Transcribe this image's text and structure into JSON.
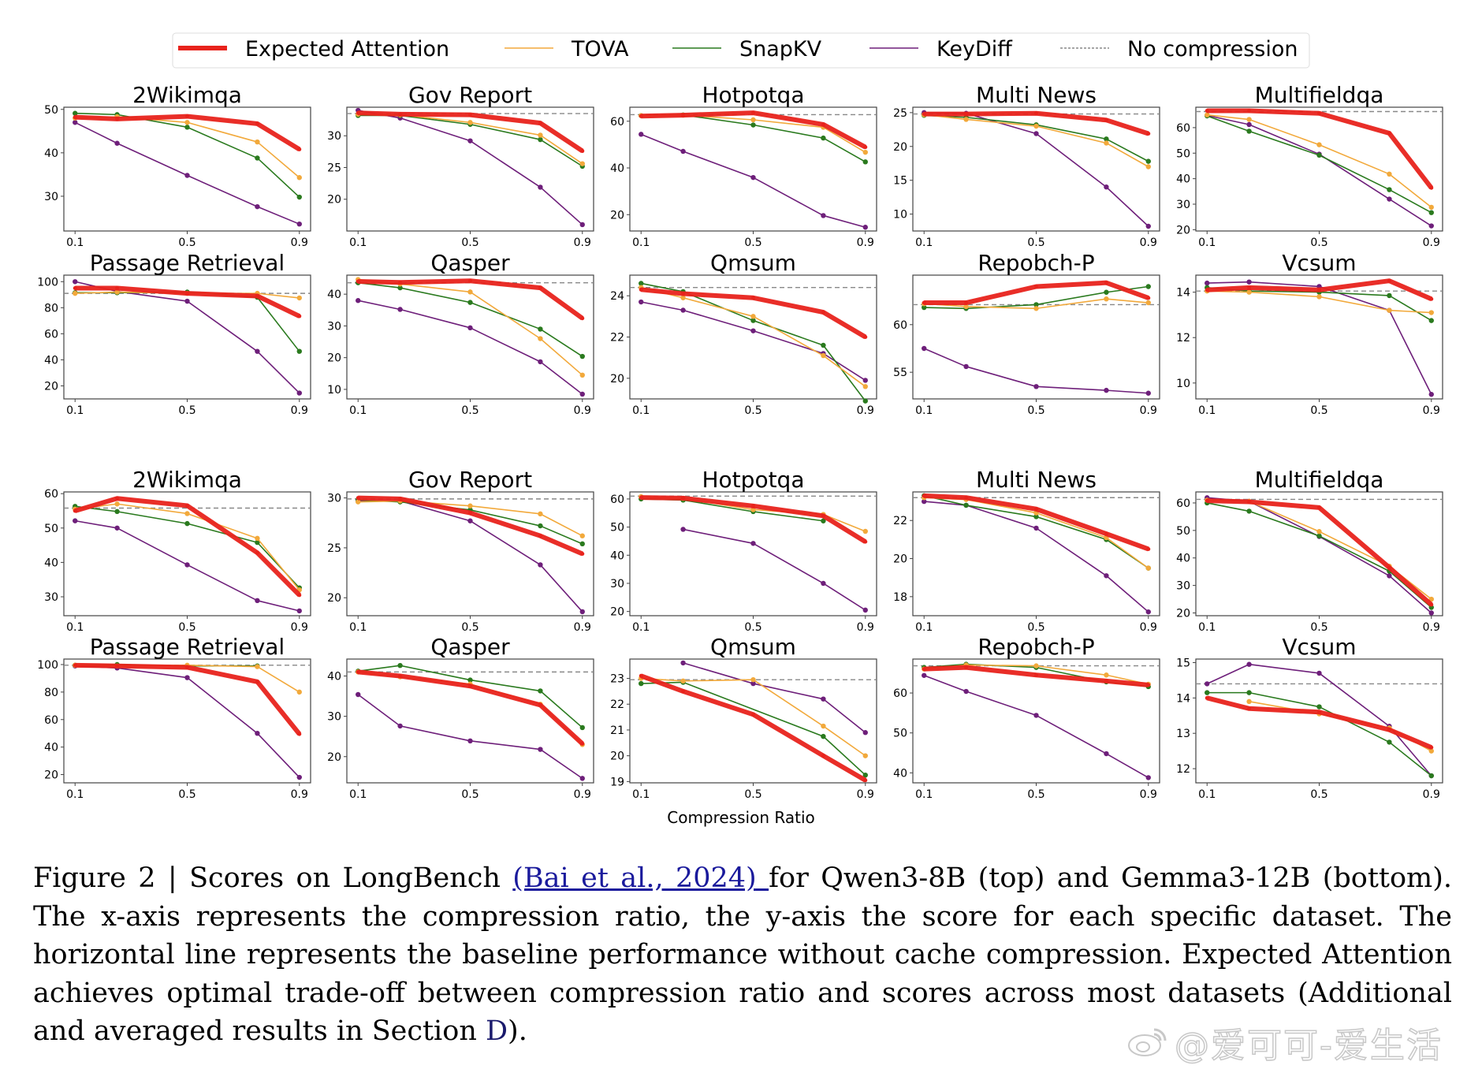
{
  "legend": [
    {
      "name": "Expected Attention",
      "color": "#e8231c",
      "style": "thick"
    },
    {
      "name": "TOVA",
      "color": "#f2a93b",
      "style": "thin"
    },
    {
      "name": "SnapKV",
      "color": "#2a7a1e",
      "style": "thin"
    },
    {
      "name": "KeyDiff",
      "color": "#6e1f7a",
      "style": "thin"
    },
    {
      "name": "No compression",
      "color": "#888888",
      "style": "dashed"
    }
  ],
  "caption": {
    "prefix": "Figure 2 | Scores on LongBench ",
    "citation": "(Bai et al., 2024) ",
    "middle": "for Qwen3-8B (top) and Gemma3-12B (bottom). The x-axis represents the compression ratio, the y-axis the score for each specific dataset. The horizontal line represents the baseline performance without cache compression. Expected Attention achieves optimal trade-off between compression ratio and scores across most datasets (Additional and averaged results in Section ",
    "section_ref": "D",
    "suffix": ")."
  },
  "watermark": "@爱可可-爱生活",
  "chart_data": [
    {
      "type": "line",
      "group": "Qwen3-8B (top)",
      "xlabel": "Compression Ratio",
      "x": [
        0.1,
        0.25,
        0.5,
        0.75,
        0.9
      ],
      "xticks": [
        "0.1",
        "0.5",
        "0.9"
      ],
      "panels": [
        {
          "title": "2Wikimqa",
          "ylim": [
            22,
            50.5
          ],
          "yticks": [
            30,
            40,
            50
          ],
          "baseline": null,
          "series": {
            "Expected Attention": [
              48.2,
              47.8,
              48.4,
              46.7,
              40.8
            ],
            "TOVA": [
              48.0,
              48.3,
              47.0,
              42.5,
              34.3
            ],
            "SnapKV": [
              49.1,
              48.8,
              45.9,
              38.8,
              29.8
            ],
            "KeyDiff": [
              47.0,
              42.2,
              34.8,
              27.6,
              23.6
            ]
          }
        },
        {
          "title": "Gov Report",
          "ylim": [
            15,
            34.5
          ],
          "yticks": [
            20,
            25,
            30
          ],
          "baseline": 33.5,
          "series": {
            "Expected Attention": [
              33.6,
              33.4,
              33.3,
              32.0,
              27.6
            ],
            "TOVA": [
              33.4,
              33.3,
              32.1,
              30.1,
              25.6
            ],
            "SnapKV": [
              33.2,
              33.2,
              31.8,
              29.4,
              25.2
            ],
            "KeyDiff": [
              34.0,
              32.8,
              29.2,
              21.9,
              16.0
            ]
          }
        },
        {
          "title": "Hotpotqa",
          "ylim": [
            13,
            66
          ],
          "yticks": [
            20,
            40,
            60
          ],
          "baseline": 62.8,
          "series": {
            "Expected Attention": [
              62.2,
              62.6,
              63.6,
              58.6,
              48.9
            ],
            "TOVA": [
              62.4,
              62.6,
              60.6,
              57.4,
              46.7
            ],
            "SnapKV": [
              62.4,
              62.7,
              58.4,
              52.8,
              42.6
            ],
            "KeyDiff": [
              54.4,
              47.1,
              35.9,
              19.6,
              14.6
            ]
          }
        },
        {
          "title": "Multi News",
          "ylim": [
            7.5,
            25.8
          ],
          "yticks": [
            10,
            15,
            20,
            25
          ],
          "baseline": 24.8,
          "series": {
            "Expected Attention": [
              24.8,
              24.8,
              24.9,
              23.9,
              21.9
            ],
            "TOVA": [
              24.7,
              24.0,
              23.0,
              20.5,
              17.0
            ],
            "SnapKV": [
              24.6,
              24.3,
              23.2,
              21.1,
              17.8
            ],
            "KeyDiff": [
              25.0,
              24.9,
              21.9,
              14.0,
              8.2
            ]
          }
        },
        {
          "title": "Multifieldqa",
          "ylim": [
            19.5,
            68
          ],
          "yticks": [
            20,
            30,
            40,
            50,
            60
          ],
          "baseline": 66.3,
          "series": {
            "Expected Attention": [
              66.6,
              66.6,
              65.6,
              57.8,
              36.4
            ],
            "TOVA": [
              65.0,
              63.2,
              53.3,
              41.8,
              28.8
            ],
            "SnapKV": [
              64.6,
              58.6,
              49.2,
              35.7,
              26.7
            ],
            "KeyDiff": [
              64.8,
              61.2,
              49.6,
              32.0,
              21.5
            ]
          }
        },
        {
          "title": "Passage Retrieval",
          "ylim": [
            10,
            105
          ],
          "yticks": [
            20,
            40,
            60,
            80,
            100
          ],
          "baseline": 91.0,
          "series": {
            "Expected Attention": [
              95.0,
              95.0,
              91.0,
              89.0,
              73.5
            ],
            "TOVA": [
              91.0,
              92.0,
              91.0,
              91.0,
              87.5
            ],
            "SnapKV": [
              91.5,
              91.5,
              92.0,
              88.0,
              46.5
            ],
            "KeyDiff": [
              100.0,
              92.5,
              85.0,
              46.5,
              14.5
            ]
          }
        },
        {
          "title": "Qasper",
          "ylim": [
            7,
            46
          ],
          "yticks": [
            10,
            20,
            30,
            40
          ],
          "baseline": 43.6,
          "series": {
            "Expected Attention": [
              44.0,
              43.7,
              44.2,
              42.0,
              32.4
            ],
            "TOVA": [
              44.6,
              43.2,
              40.7,
              26.0,
              14.5
            ],
            "SnapKV": [
              43.6,
              42.0,
              37.4,
              29.0,
              20.4
            ],
            "KeyDiff": [
              38.0,
              35.2,
              29.4,
              18.7,
              8.5
            ]
          }
        },
        {
          "title": "Qmsum",
          "ylim": [
            19.0,
            25.0
          ],
          "yticks": [
            20,
            22,
            24
          ],
          "baseline": 24.4,
          "series": {
            "Expected Attention": [
              24.3,
              24.1,
              23.9,
              23.2,
              22.0
            ],
            "TOVA": [
              24.4,
              23.9,
              23.0,
              21.1,
              19.6
            ],
            "SnapKV": [
              24.6,
              24.2,
              22.8,
              21.6,
              18.9
            ],
            "KeyDiff": [
              23.7,
              23.3,
              22.3,
              21.2,
              19.9
            ]
          }
        },
        {
          "title": "Repobch-P",
          "ylim": [
            52.2,
            65.2
          ],
          "yticks": [
            55,
            60
          ],
          "baseline": 62.1,
          "series": {
            "Expected Attention": [
              62.3,
              62.3,
              64.0,
              64.4,
              62.8
            ],
            "TOVA": [
              62.2,
              61.9,
              61.7,
              62.7,
              62.3
            ],
            "SnapKV": [
              61.8,
              61.7,
              62.1,
              63.4,
              64.0
            ],
            "KeyDiff": [
              57.5,
              55.6,
              53.5,
              53.1,
              52.8
            ]
          }
        },
        {
          "title": "Vcsum",
          "ylim": [
            9.3,
            14.75
          ],
          "yticks": [
            10,
            12,
            14
          ],
          "baseline": 14.05,
          "series": {
            "Expected Attention": [
              14.1,
              14.2,
              14.1,
              14.5,
              13.7
            ],
            "TOVA": [
              14.05,
              14.0,
              13.8,
              13.2,
              13.1
            ],
            "SnapKV": [
              14.2,
              14.05,
              14.0,
              13.85,
              12.75
            ],
            "KeyDiff": [
              14.4,
              14.45,
              14.25,
              13.2,
              9.5
            ]
          }
        }
      ]
    },
    {
      "type": "line",
      "group": "Gemma3-12B (bottom)",
      "xlabel": "Compression Ratio",
      "x": [
        0.1,
        0.25,
        0.5,
        0.75,
        0.9
      ],
      "xticks": [
        "0.1",
        "0.5",
        "0.9"
      ],
      "panels": [
        {
          "title": "2Wikimqa",
          "ylim": [
            24.5,
            60.5
          ],
          "yticks": [
            30,
            40,
            50,
            60
          ],
          "baseline": 55.8,
          "series": {
            "Expected Attention": [
              55.0,
              58.6,
              56.5,
              42.8,
              30.5
            ],
            "TOVA": [
              55.5,
              57.0,
              54.2,
              47.0,
              32.0
            ],
            "SnapKV": [
              56.3,
              54.8,
              51.3,
              45.8,
              32.6
            ],
            "KeyDiff": [
              52.1,
              50.0,
              39.3,
              28.9,
              25.9
            ]
          }
        },
        {
          "title": "Gov Report",
          "ylim": [
            18.2,
            30.6
          ],
          "yticks": [
            20,
            25,
            30
          ],
          "baseline": 29.9,
          "series": {
            "Expected Attention": [
              30.0,
              29.9,
              28.5,
              26.2,
              24.4
            ],
            "TOVA": [
              29.6,
              29.7,
              29.2,
              28.4,
              26.2
            ],
            "SnapKV": [
              29.8,
              29.6,
              28.8,
              27.2,
              25.4
            ],
            "KeyDiff": [
              29.7,
              29.7,
              27.7,
              23.3,
              18.6
            ]
          }
        },
        {
          "title": "Hotpotqa",
          "ylim": [
            18.5,
            62.5
          ],
          "yticks": [
            20,
            30,
            40,
            50,
            60
          ],
          "baseline": 61.0,
          "series": {
            "Expected Attention": [
              60.5,
              60.3,
              57.5,
              54.0,
              44.8
            ],
            "TOVA": [
              60.8,
              60.2,
              56.2,
              54.5,
              48.5
            ],
            "SnapKV": [
              60.0,
              59.6,
              55.5,
              52.2,
              null
            ],
            "KeyDiff": [
              null,
              49.2,
              44.2,
              30.0,
              20.5
            ]
          }
        },
        {
          "title": "Multi News",
          "ylim": [
            17.0,
            23.5
          ],
          "yticks": [
            18,
            20,
            22
          ],
          "baseline": 23.2,
          "series": {
            "Expected Attention": [
              23.3,
              23.2,
              22.6,
              21.3,
              20.5
            ],
            "TOVA": [
              23.2,
              23.1,
              22.4,
              21.1,
              19.5
            ],
            "SnapKV": [
              23.3,
              22.8,
              22.2,
              21.0,
              19.5
            ],
            "KeyDiff": [
              23.0,
              22.8,
              21.6,
              19.1,
              17.2
            ]
          }
        },
        {
          "title": "Multifieldqa",
          "ylim": [
            19,
            64
          ],
          "yticks": [
            20,
            30,
            40,
            50,
            60
          ],
          "baseline": 61.3,
          "series": {
            "Expected Attention": [
              60.8,
              60.4,
              58.3,
              36.5,
              23.0
            ],
            "TOVA": [
              61.0,
              60.6,
              49.6,
              37.0,
              25.0
            ],
            "SnapKV": [
              60.0,
              57.0,
              48.0,
              35.2,
              22.0
            ],
            "KeyDiff": [
              61.9,
              60.6,
              47.8,
              33.5,
              20.0
            ]
          }
        },
        {
          "title": "Passage Retrieval",
          "ylim": [
            14,
            104
          ],
          "yticks": [
            20,
            40,
            60,
            80,
            100
          ],
          "baseline": 99.5,
          "series": {
            "Expected Attention": [
              99.5,
              99.0,
              98.0,
              87.5,
              49.5
            ],
            "TOVA": [
              99.5,
              99.0,
              99.5,
              98.5,
              80.0
            ],
            "SnapKV": [
              99.5,
              100.0,
              99.0,
              99.0,
              null
            ],
            "KeyDiff": [
              99.0,
              97.5,
              90.5,
              50.0,
              18.0
            ]
          }
        },
        {
          "title": "Qasper",
          "ylim": [
            13.5,
            44.2
          ],
          "yticks": [
            20,
            30,
            40
          ],
          "baseline": 41.0,
          "series": {
            "Expected Attention": [
              41.0,
              40.0,
              37.5,
              32.8,
              23.2
            ],
            "TOVA": [
              41.0,
              39.8,
              38.0,
              33.0,
              23.0
            ],
            "SnapKV": [
              41.2,
              42.6,
              39.0,
              36.3,
              27.2
            ],
            "KeyDiff": [
              35.4,
              27.6,
              23.9,
              21.8,
              14.6
            ]
          }
        },
        {
          "title": "Qmsum",
          "ylim": [
            18.95,
            23.75
          ],
          "yticks": [
            19,
            20,
            21,
            22,
            23
          ],
          "baseline": 22.95,
          "series": {
            "Expected Attention": [
              23.1,
              22.5,
              21.6,
              20.0,
              19.05
            ],
            "TOVA": [
              23.0,
              22.9,
              22.95,
              21.15,
              20.0
            ],
            "SnapKV": [
              22.8,
              22.85,
              null,
              20.75,
              19.25
            ],
            "KeyDiff": [
              null,
              23.6,
              22.8,
              22.2,
              20.9
            ]
          }
        },
        {
          "title": "Repobch-P",
          "ylim": [
            37.5,
            68.5
          ],
          "yticks": [
            40,
            50,
            60
          ],
          "baseline": 66.8,
          "series": {
            "Expected Attention": [
              66.0,
              66.4,
              64.5,
              63.0,
              62.0
            ],
            "TOVA": [
              66.0,
              67.0,
              66.8,
              64.5,
              62.2
            ],
            "SnapKV": [
              66.4,
              67.2,
              66.4,
              62.8,
              61.6
            ],
            "KeyDiff": [
              64.4,
              60.4,
              54.4,
              44.8,
              38.8
            ]
          }
        },
        {
          "title": "Vcsum",
          "ylim": [
            11.6,
            15.1
          ],
          "yticks": [
            12,
            13,
            14,
            15
          ],
          "baseline": 14.4,
          "series": {
            "Expected Attention": [
              14.0,
              13.7,
              13.6,
              13.1,
              12.6
            ],
            "TOVA": [
              null,
              13.9,
              13.55,
              13.15,
              12.5
            ],
            "SnapKV": [
              14.15,
              14.15,
              13.75,
              12.75,
              11.8
            ],
            "KeyDiff": [
              14.4,
              14.95,
              14.7,
              13.2,
              11.8
            ]
          }
        }
      ]
    }
  ]
}
